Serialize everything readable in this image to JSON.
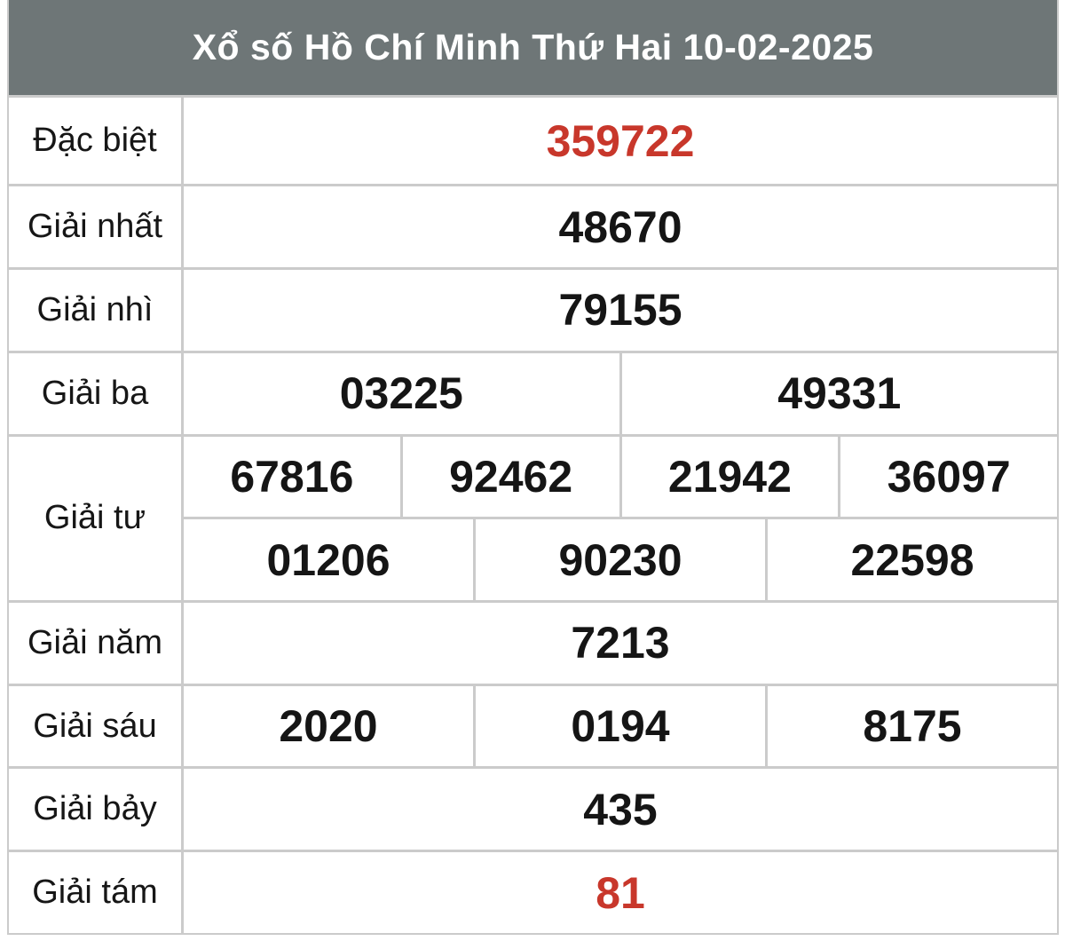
{
  "header": {
    "title": "Xổ số Hồ Chí Minh Thứ Hai 10-02-2025",
    "bg_color": "#6e7677",
    "text_color": "#ffffff"
  },
  "colors": {
    "page_background": "#ffffff",
    "cell_background": "#ffffff",
    "grid_border": "#cbcbcb",
    "label_text": "#161616",
    "value_text": "#151515",
    "highlight_red": "#c8372b"
  },
  "table": {
    "rows": [
      {
        "label": "Đặc biệt",
        "values": [
          "359722"
        ],
        "highlight": true,
        "tall": true
      },
      {
        "label": "Giải nhất",
        "values": [
          "48670"
        ]
      },
      {
        "label": "Giải nhì",
        "values": [
          "79155"
        ]
      },
      {
        "label": "Giải ba",
        "values": [
          "03225",
          "49331"
        ]
      },
      {
        "label": "Giải tư",
        "sub_rows": [
          [
            "67816",
            "92462",
            "21942",
            "36097"
          ],
          [
            "01206",
            "90230",
            "22598"
          ]
        ]
      },
      {
        "label": "Giải năm",
        "values": [
          "7213"
        ]
      },
      {
        "label": "Giải sáu",
        "values": [
          "2020",
          "0194",
          "8175"
        ]
      },
      {
        "label": "Giải bảy",
        "values": [
          "435"
        ]
      },
      {
        "label": "Giải tám",
        "values": [
          "81"
        ],
        "highlight": true
      }
    ]
  }
}
